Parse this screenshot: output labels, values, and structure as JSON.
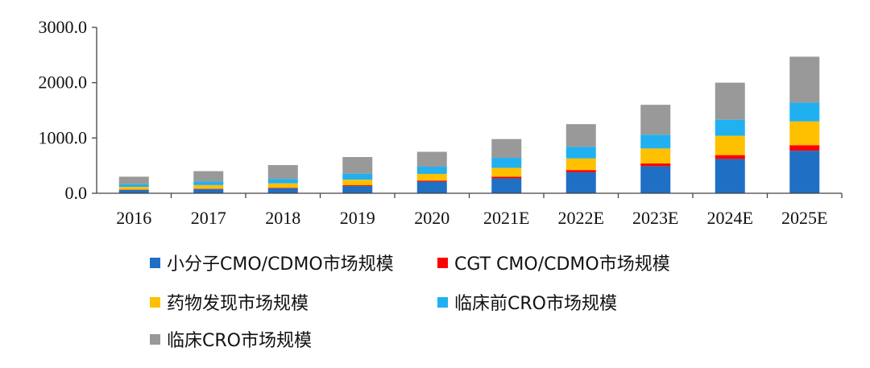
{
  "chart_data": {
    "type": "bar",
    "stacked": true,
    "title": "",
    "xlabel": "",
    "ylabel": "",
    "ylim": [
      0,
      3000
    ],
    "yticks": [
      "0.0",
      "1000.0",
      "2000.0",
      "3000.0"
    ],
    "categories": [
      "2016",
      "2017",
      "2018",
      "2019",
      "2020",
      "2021E",
      "2022E",
      "2023E",
      "2024E",
      "2025E"
    ],
    "series": [
      {
        "name": "小分子CMO/CDMO市场规模",
        "color": "#1f6fc4",
        "values": [
          60,
          75,
          90,
          130,
          210,
          270,
          380,
          490,
          620,
          770
        ]
      },
      {
        "name": "CGT CMO/CDMO市场规模",
        "color": "#ff0000",
        "values": [
          5,
          8,
          10,
          15,
          20,
          30,
          40,
          50,
          70,
          100
        ]
      },
      {
        "name": "药物发现市场规模",
        "color": "#ffc000",
        "values": [
          50,
          65,
          80,
          100,
          120,
          160,
          210,
          270,
          350,
          430
        ]
      },
      {
        "name": "临床前CRO市场规模",
        "color": "#21b0f0",
        "values": [
          50,
          65,
          80,
          110,
          130,
          180,
          210,
          250,
          290,
          340
        ]
      },
      {
        "name": "临床CRO市场规模",
        "color": "#999999",
        "values": [
          135,
          187,
          250,
          300,
          270,
          340,
          410,
          540,
          670,
          830
        ]
      }
    ],
    "legend_position": "bottom"
  }
}
